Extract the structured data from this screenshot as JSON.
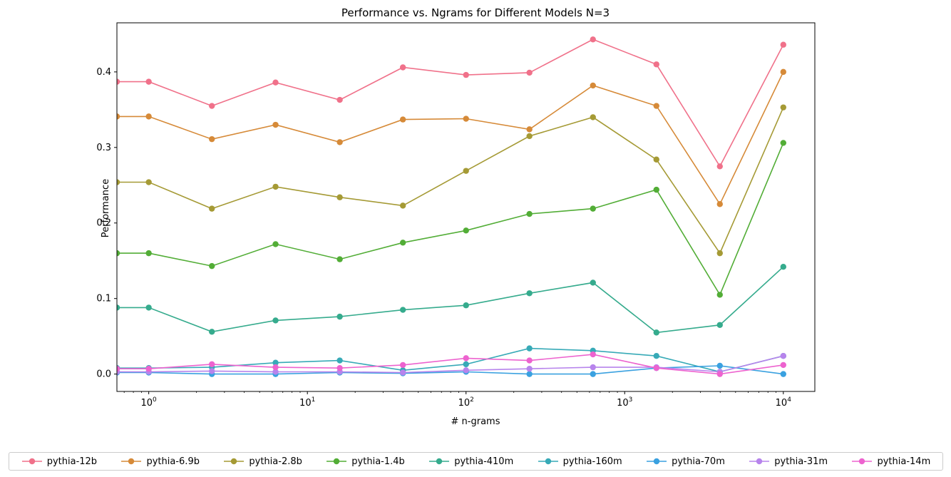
{
  "chart_data": {
    "type": "line",
    "title": "Performance vs. Ngrams for Different Models N=3",
    "xlabel": "# n-grams",
    "ylabel": "Performance",
    "xscale": "log",
    "xlim": [
      0.63,
      15800
    ],
    "ylim": [
      -0.023,
      0.465
    ],
    "x": [
      0.63,
      1,
      2.5,
      6.3,
      16,
      40,
      100,
      251,
      631,
      1585,
      3981,
      10000
    ],
    "x_tick_labels": [
      "10^0",
      "10^1",
      "10^2",
      "10^3",
      "10^4"
    ],
    "y_tick_labels": [
      "0.0",
      "0.1",
      "0.2",
      "0.3",
      "0.4"
    ],
    "y_ticks": [
      0.0,
      0.1,
      0.2,
      0.3,
      0.4
    ],
    "grid": false,
    "legend_position": "bottom",
    "series": [
      {
        "name": "pythia-12b",
        "color": "#f0718a",
        "values": [
          0.387,
          0.387,
          0.355,
          0.386,
          0.363,
          0.406,
          0.396,
          0.399,
          0.443,
          0.41,
          0.275,
          0.436
        ]
      },
      {
        "name": "pythia-6.9b",
        "color": "#d68a38",
        "values": [
          0.341,
          0.341,
          0.311,
          0.33,
          0.307,
          0.337,
          0.338,
          0.324,
          0.382,
          0.355,
          0.225,
          0.4
        ]
      },
      {
        "name": "pythia-2.8b",
        "color": "#a59a35",
        "values": [
          0.254,
          0.254,
          0.219,
          0.248,
          0.234,
          0.223,
          0.269,
          0.315,
          0.34,
          0.284,
          0.16,
          0.353
        ]
      },
      {
        "name": "pythia-1.4b",
        "color": "#52ad36",
        "values": [
          0.16,
          0.16,
          0.143,
          0.172,
          0.152,
          0.174,
          0.19,
          0.212,
          0.219,
          0.244,
          0.105,
          0.306
        ]
      },
      {
        "name": "pythia-410m",
        "color": "#35ab8d",
        "values": [
          0.088,
          0.088,
          0.056,
          0.071,
          0.076,
          0.085,
          0.091,
          0.107,
          0.121,
          0.055,
          0.065,
          0.142
        ]
      },
      {
        "name": "pythia-160m",
        "color": "#37aab7",
        "values": [
          0.008,
          0.008,
          0.009,
          0.015,
          0.018,
          0.005,
          0.013,
          0.034,
          0.031,
          0.024,
          0.003,
          0.024
        ]
      },
      {
        "name": "pythia-70m",
        "color": "#3aa1e0",
        "values": [
          0.002,
          0.002,
          0.0,
          0.0,
          0.002,
          0.001,
          0.003,
          0.0,
          0.0,
          0.008,
          0.011,
          0.0
        ]
      },
      {
        "name": "pythia-31m",
        "color": "#b784ec",
        "values": [
          0.003,
          0.003,
          0.004,
          0.003,
          0.003,
          0.002,
          0.005,
          0.007,
          0.009,
          0.009,
          0.003,
          0.024
        ]
      },
      {
        "name": "pythia-14m",
        "color": "#ed63cf",
        "values": [
          0.007,
          0.007,
          0.013,
          0.009,
          0.008,
          0.012,
          0.021,
          0.018,
          0.026,
          0.008,
          0.0,
          0.012
        ]
      }
    ]
  }
}
